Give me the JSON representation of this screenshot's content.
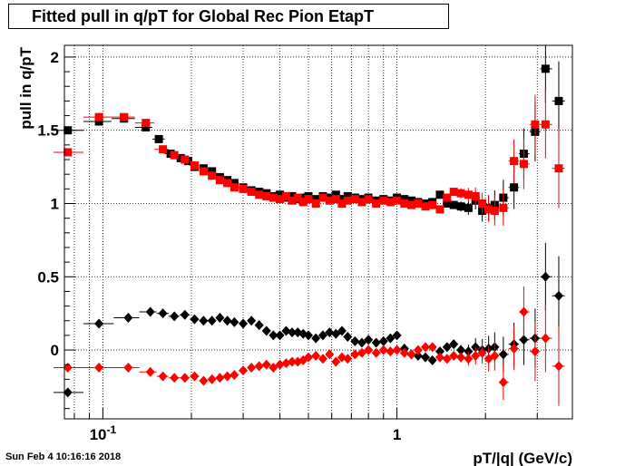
{
  "chart_data": {
    "type": "scatter",
    "title": "Fitted pull in q/pT for Global Rec Pion EtapT",
    "xlabel": "pT/|q| (GeV/c)",
    "ylabel": "pull in q/pT",
    "xscale": "log",
    "xlim": [
      0.074,
      3.95
    ],
    "ylim": [
      -0.47,
      2.08
    ],
    "grid": true,
    "x_ticks": [
      {
        "value": 0.1,
        "label": "10^{-1}"
      },
      {
        "value": 1,
        "label": "1"
      }
    ],
    "y_ticks": [
      {
        "value": 0,
        "label": "0"
      },
      {
        "value": 0.5,
        "label": "0.5"
      },
      {
        "value": 1,
        "label": "1"
      },
      {
        "value": 1.5,
        "label": "1.5"
      },
      {
        "value": 2,
        "label": "2"
      }
    ],
    "series": [
      {
        "marker": "square",
        "color": "#000000",
        "points": [
          [
            0.076,
            1.5
          ],
          [
            0.097,
            1.56
          ],
          [
            0.118,
            1.58
          ],
          [
            0.14,
            1.52
          ],
          [
            0.155,
            1.44
          ],
          [
            0.17,
            1.34
          ],
          [
            0.184,
            1.31
          ],
          [
            0.195,
            1.29
          ],
          [
            0.205,
            1.25
          ],
          [
            0.22,
            1.24
          ],
          [
            0.235,
            1.22
          ],
          [
            0.25,
            1.18
          ],
          [
            0.265,
            1.16
          ],
          [
            0.28,
            1.14
          ],
          [
            0.3,
            1.11
          ],
          [
            0.32,
            1.09
          ],
          [
            0.34,
            1.08
          ],
          [
            0.36,
            1.07
          ],
          [
            0.38,
            1.05
          ],
          [
            0.4,
            1.06
          ],
          [
            0.42,
            1.04
          ],
          [
            0.44,
            1.05
          ],
          [
            0.46,
            1.03
          ],
          [
            0.48,
            1.04
          ],
          [
            0.5,
            1.05
          ],
          [
            0.53,
            1.03
          ],
          [
            0.56,
            1.05
          ],
          [
            0.59,
            1.04
          ],
          [
            0.62,
            1.06
          ],
          [
            0.65,
            1.03
          ],
          [
            0.68,
            1.05
          ],
          [
            0.72,
            1.04
          ],
          [
            0.76,
            1.03
          ],
          [
            0.8,
            1.04
          ],
          [
            0.85,
            1.02
          ],
          [
            0.9,
            1.03
          ],
          [
            0.95,
            1.02
          ],
          [
            1.0,
            1.04
          ],
          [
            1.06,
            1.03
          ],
          [
            1.12,
            1.02
          ],
          [
            1.18,
            1.01
          ],
          [
            1.25,
            1.0
          ],
          [
            1.32,
            1.01
          ],
          [
            1.4,
            1.06
          ],
          [
            1.48,
            1.0
          ],
          [
            1.56,
            0.99
          ],
          [
            1.65,
            0.98
          ],
          [
            1.75,
            0.97
          ],
          [
            1.85,
            1.02
          ],
          [
            1.95,
            0.95
          ],
          [
            2.05,
            0.97
          ],
          [
            2.15,
            0.99
          ],
          [
            2.3,
            1.04
          ],
          [
            2.5,
            1.11
          ],
          [
            2.7,
            1.34
          ],
          [
            2.95,
            1.49
          ],
          [
            3.2,
            1.92
          ],
          [
            3.55,
            1.7
          ]
        ]
      },
      {
        "marker": "square",
        "color": "#ff0000",
        "points": [
          [
            0.076,
            1.35
          ],
          [
            0.097,
            1.59
          ],
          [
            0.118,
            1.59
          ],
          [
            0.14,
            1.55
          ],
          [
            0.16,
            1.37
          ],
          [
            0.175,
            1.33
          ],
          [
            0.19,
            1.3
          ],
          [
            0.205,
            1.26
          ],
          [
            0.22,
            1.22
          ],
          [
            0.235,
            1.19
          ],
          [
            0.25,
            1.16
          ],
          [
            0.265,
            1.14
          ],
          [
            0.28,
            1.11
          ],
          [
            0.3,
            1.1
          ],
          [
            0.32,
            1.08
          ],
          [
            0.34,
            1.06
          ],
          [
            0.36,
            1.05
          ],
          [
            0.38,
            1.04
          ],
          [
            0.4,
            1.03
          ],
          [
            0.42,
            1.05
          ],
          [
            0.44,
            1.02
          ],
          [
            0.46,
            1.04
          ],
          [
            0.48,
            1.01
          ],
          [
            0.5,
            1.03
          ],
          [
            0.53,
            1.0
          ],
          [
            0.56,
            1.04
          ],
          [
            0.59,
            1.02
          ],
          [
            0.62,
            1.03
          ],
          [
            0.65,
            1.0
          ],
          [
            0.68,
            1.02
          ],
          [
            0.72,
            1.03
          ],
          [
            0.76,
            1.01
          ],
          [
            0.8,
            1.03
          ],
          [
            0.85,
            1.0
          ],
          [
            0.9,
            1.02
          ],
          [
            0.95,
            1.01
          ],
          [
            1.0,
            1.02
          ],
          [
            1.06,
            1.0
          ],
          [
            1.12,
            0.99
          ],
          [
            1.18,
            1.0
          ],
          [
            1.25,
            0.98
          ],
          [
            1.32,
            0.99
          ],
          [
            1.4,
            0.96
          ],
          [
            1.48,
            1.04
          ],
          [
            1.56,
            1.08
          ],
          [
            1.65,
            1.07
          ],
          [
            1.75,
            1.06
          ],
          [
            1.85,
            1.05
          ],
          [
            1.95,
            1.0
          ],
          [
            2.05,
            0.96
          ],
          [
            2.15,
            0.95
          ],
          [
            2.3,
            0.97
          ],
          [
            2.5,
            1.29
          ],
          [
            2.7,
            1.27
          ],
          [
            2.95,
            1.54
          ],
          [
            3.2,
            1.54
          ],
          [
            3.55,
            1.24
          ]
        ]
      },
      {
        "marker": "diamond",
        "color": "#000000",
        "points": [
          [
            0.076,
            -0.29
          ],
          [
            0.097,
            0.18
          ],
          [
            0.122,
            0.22
          ],
          [
            0.145,
            0.26
          ],
          [
            0.16,
            0.25
          ],
          [
            0.175,
            0.23
          ],
          [
            0.19,
            0.24
          ],
          [
            0.205,
            0.21
          ],
          [
            0.22,
            0.2
          ],
          [
            0.235,
            0.2
          ],
          [
            0.25,
            0.22
          ],
          [
            0.265,
            0.2
          ],
          [
            0.28,
            0.19
          ],
          [
            0.3,
            0.18
          ],
          [
            0.32,
            0.2
          ],
          [
            0.34,
            0.17
          ],
          [
            0.36,
            0.13
          ],
          [
            0.38,
            0.1
          ],
          [
            0.4,
            0.1
          ],
          [
            0.42,
            0.13
          ],
          [
            0.44,
            0.12
          ],
          [
            0.46,
            0.12
          ],
          [
            0.48,
            0.11
          ],
          [
            0.5,
            0.1
          ],
          [
            0.53,
            0.08
          ],
          [
            0.56,
            0.1
          ],
          [
            0.59,
            0.12
          ],
          [
            0.62,
            0.11
          ],
          [
            0.65,
            0.13
          ],
          [
            0.68,
            0.09
          ],
          [
            0.72,
            0.06
          ],
          [
            0.76,
            0.05
          ],
          [
            0.8,
            0.07
          ],
          [
            0.85,
            0.05
          ],
          [
            0.9,
            0.06
          ],
          [
            0.95,
            0.08
          ],
          [
            1.0,
            0.1
          ],
          [
            1.06,
            0.01
          ],
          [
            1.12,
            -0.03
          ],
          [
            1.18,
            -0.04
          ],
          [
            1.25,
            -0.05
          ],
          [
            1.32,
            -0.07
          ],
          [
            1.4,
            -0.01
          ],
          [
            1.48,
            0.02
          ],
          [
            1.56,
            0.04
          ],
          [
            1.65,
            0.0
          ],
          [
            1.75,
            -0.01
          ],
          [
            1.85,
            0.02
          ],
          [
            1.95,
            0.0
          ],
          [
            2.05,
            0.01
          ],
          [
            2.15,
            0.02
          ],
          [
            2.3,
            -0.03
          ],
          [
            2.5,
            0.04
          ],
          [
            2.7,
            0.07
          ],
          [
            2.95,
            0.08
          ],
          [
            3.2,
            0.5
          ],
          [
            3.55,
            0.37
          ]
        ]
      },
      {
        "marker": "diamond",
        "color": "#ff0000",
        "points": [
          [
            0.076,
            -0.12
          ],
          [
            0.097,
            -0.12
          ],
          [
            0.122,
            -0.12
          ],
          [
            0.145,
            -0.15
          ],
          [
            0.16,
            -0.18
          ],
          [
            0.175,
            -0.19
          ],
          [
            0.19,
            -0.19
          ],
          [
            0.205,
            -0.18
          ],
          [
            0.22,
            -0.21
          ],
          [
            0.235,
            -0.2
          ],
          [
            0.25,
            -0.19
          ],
          [
            0.265,
            -0.18
          ],
          [
            0.28,
            -0.17
          ],
          [
            0.3,
            -0.14
          ],
          [
            0.32,
            -0.12
          ],
          [
            0.34,
            -0.11
          ],
          [
            0.36,
            -0.1
          ],
          [
            0.38,
            -0.12
          ],
          [
            0.4,
            -0.1
          ],
          [
            0.42,
            -0.09
          ],
          [
            0.44,
            -0.08
          ],
          [
            0.46,
            -0.08
          ],
          [
            0.48,
            -0.07
          ],
          [
            0.5,
            -0.05
          ],
          [
            0.53,
            -0.04
          ],
          [
            0.56,
            -0.06
          ],
          [
            0.59,
            -0.03
          ],
          [
            0.62,
            -0.08
          ],
          [
            0.65,
            -0.05
          ],
          [
            0.68,
            -0.06
          ],
          [
            0.72,
            -0.03
          ],
          [
            0.76,
            -0.02
          ],
          [
            0.8,
            0.0
          ],
          [
            0.85,
            -0.02
          ],
          [
            0.9,
            0.0
          ],
          [
            0.95,
            -0.01
          ],
          [
            1.0,
            0.0
          ],
          [
            1.06,
            -0.02
          ],
          [
            1.12,
            -0.03
          ],
          [
            1.18,
            0.0
          ],
          [
            1.25,
            0.02
          ],
          [
            1.32,
            0.02
          ],
          [
            1.4,
            -0.05
          ],
          [
            1.48,
            -0.06
          ],
          [
            1.56,
            -0.04
          ],
          [
            1.65,
            -0.05
          ],
          [
            1.75,
            -0.06
          ],
          [
            1.85,
            -0.04
          ],
          [
            1.95,
            -0.02
          ],
          [
            2.05,
            -0.06
          ],
          [
            2.15,
            -0.04
          ],
          [
            2.3,
            -0.22
          ],
          [
            2.5,
            0.01
          ],
          [
            2.7,
            0.26
          ],
          [
            2.95,
            -0.01
          ],
          [
            3.2,
            0.08
          ],
          [
            3.55,
            -0.11
          ]
        ]
      }
    ]
  },
  "footer": {
    "timestamp": "Sun Feb  4 10:16:16 2018"
  }
}
